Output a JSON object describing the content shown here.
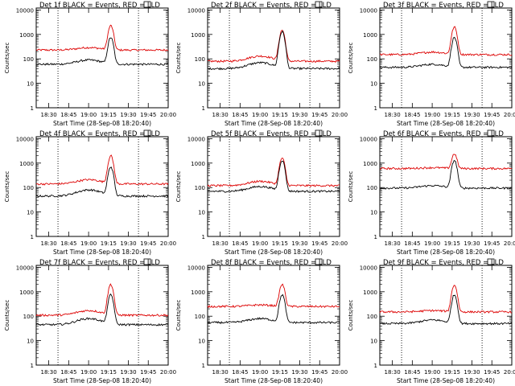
{
  "chart_data": {
    "type": "line",
    "x_ticks": [
      "18:30",
      "18:45",
      "19:00",
      "19:15",
      "19:30",
      "19:45",
      "20:00"
    ],
    "y_ticks": [
      "1",
      "10",
      "100",
      "1000",
      "10000"
    ],
    "y_scale": "log",
    "ylim": [
      1,
      12000
    ],
    "ylabel": "Counts/sec",
    "xlabel": "Start Time (28-Sep-08 18:20:40)",
    "legend_text": "BLACK = Events, RED = LLD",
    "colors": {
      "events": "#000000",
      "lld": "#dd0000"
    },
    "panels": [
      {
        "title": "Det 1f",
        "events": {
          "base": 60,
          "bump": 90,
          "peak": 750
        },
        "lld": {
          "base": 230,
          "bump": 290,
          "peak": 2300
        }
      },
      {
        "title": "Det 2f",
        "events": {
          "base": 40,
          "bump": 70,
          "peak": 1300
        },
        "lld": {
          "base": 80,
          "bump": 130,
          "peak": 1500
        }
      },
      {
        "title": "Det 3f",
        "events": {
          "base": 45,
          "bump": 60,
          "peak": 750
        },
        "lld": {
          "base": 150,
          "bump": 190,
          "peak": 2000
        }
      },
      {
        "title": "Det 4f",
        "events": {
          "base": 45,
          "bump": 80,
          "peak": 700
        },
        "lld": {
          "base": 140,
          "bump": 210,
          "peak": 2000
        }
      },
      {
        "title": "Det 5f",
        "events": {
          "base": 70,
          "bump": 110,
          "peak": 1300
        },
        "lld": {
          "base": 120,
          "bump": 180,
          "peak": 1600
        }
      },
      {
        "title": "Det 6f",
        "events": {
          "base": 95,
          "bump": 120,
          "peak": 1300
        },
        "lld": {
          "base": 600,
          "bump": 650,
          "peak": 2400
        }
      },
      {
        "title": "Det 7f",
        "events": {
          "base": 45,
          "bump": 80,
          "peak": 750
        },
        "lld": {
          "base": 110,
          "bump": 170,
          "peak": 2000
        }
      },
      {
        "title": "Det 8f",
        "events": {
          "base": 55,
          "bump": 80,
          "peak": 750
        },
        "lld": {
          "base": 250,
          "bump": 290,
          "peak": 2000
        }
      },
      {
        "title": "Det 9f",
        "events": {
          "base": 50,
          "bump": 70,
          "peak": 750
        },
        "lld": {
          "base": 150,
          "bump": 170,
          "peak": 1900
        }
      }
    ]
  }
}
